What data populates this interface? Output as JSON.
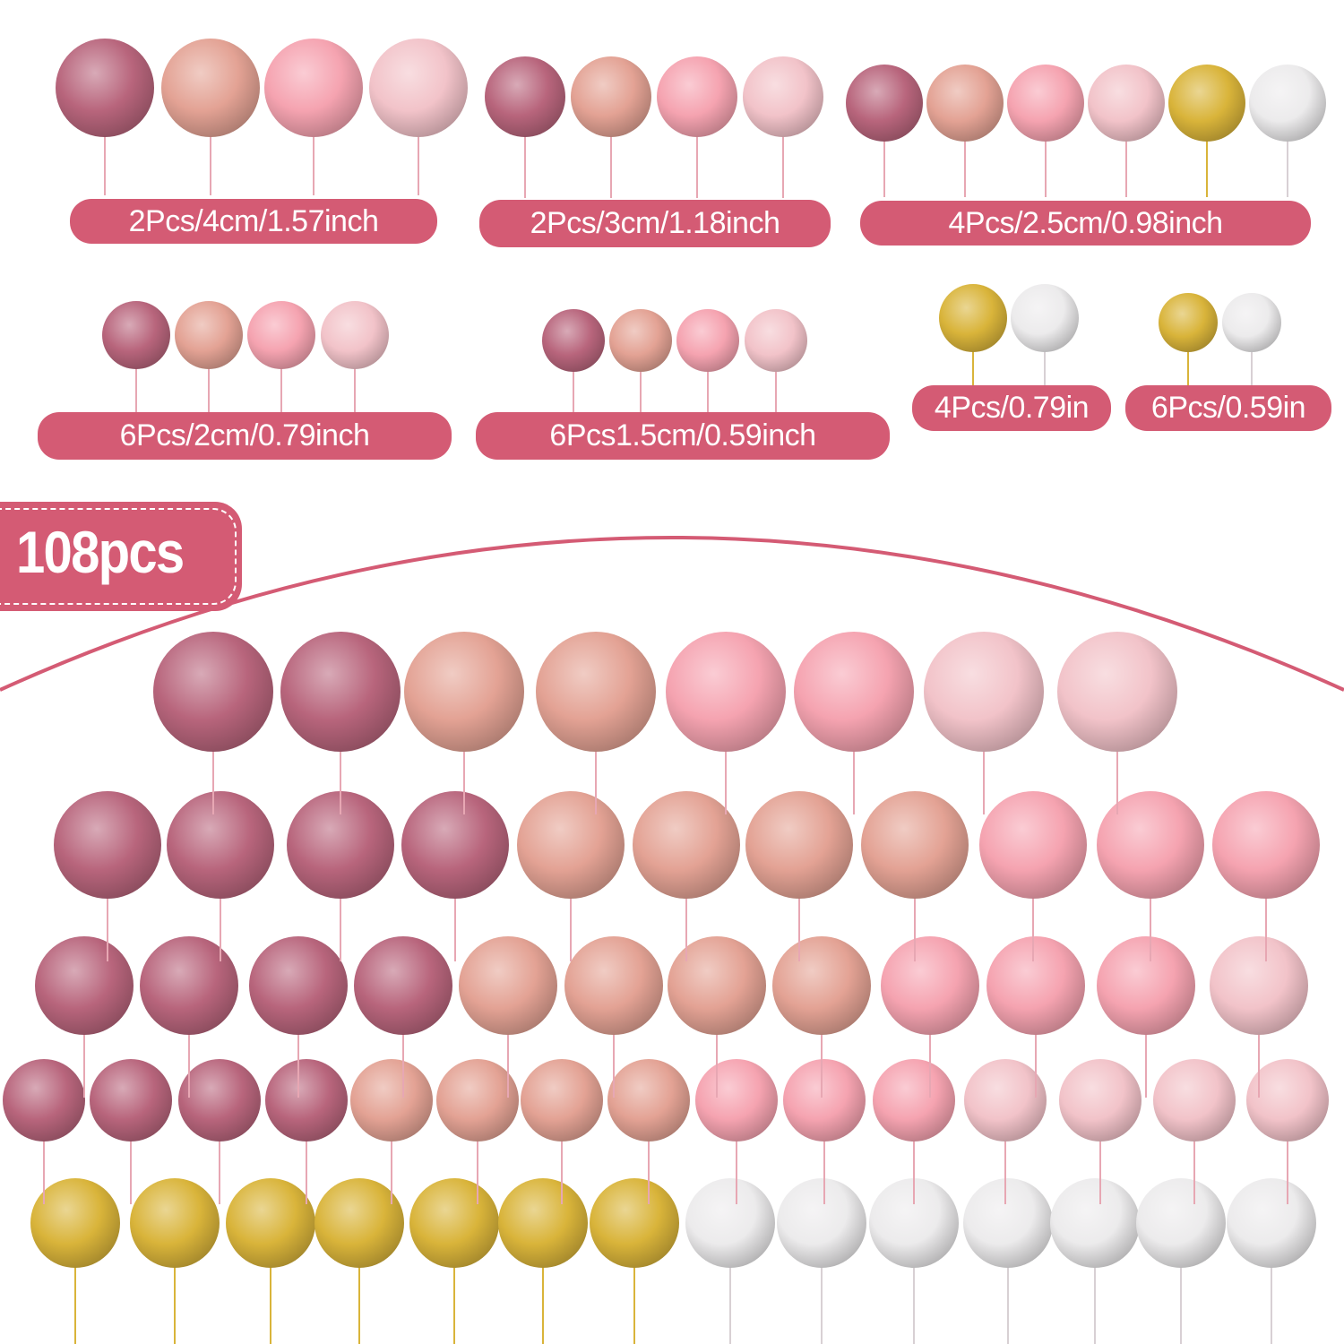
{
  "badge": "108pcs",
  "colors": {
    "accent": "#d45b74",
    "glitter": "#b8657c",
    "pearl": "#e3a294",
    "matte": "#f5a3b0",
    "light": "#f2c3c9",
    "gold": "#d9b43a",
    "silver": "#ecebec"
  },
  "groups": [
    {
      "label": "2Pcs/4cm/1.57inch",
      "balls": [
        "glitter",
        "pearl",
        "matte",
        "light"
      ]
    },
    {
      "label": "2Pcs/3cm/1.18inch",
      "balls": [
        "glitter",
        "pearl",
        "matte",
        "light"
      ]
    },
    {
      "label": "4Pcs/2.5cm/0.98inch",
      "balls": [
        "glitter",
        "pearl",
        "matte",
        "light",
        "gold",
        "silver"
      ]
    },
    {
      "label": "6Pcs/2cm/0.79inch",
      "balls": [
        "glitter",
        "pearl",
        "matte",
        "light"
      ]
    },
    {
      "label": "6Pcs1.5cm/0.59inch",
      "balls": [
        "glitter",
        "pearl",
        "matte",
        "light"
      ]
    },
    {
      "label": "4Pcs/0.79in",
      "balls": [
        "gold",
        "silver"
      ]
    },
    {
      "label": "6Pcs/0.59in",
      "balls": [
        "gold",
        "silver"
      ]
    }
  ],
  "rows": [
    [
      "glitter",
      "glitter",
      "pearl",
      "pearl",
      "matte",
      "matte",
      "light",
      "light"
    ],
    [
      "glitter",
      "glitter",
      "glitter",
      "glitter",
      "pearl",
      "pearl",
      "pearl",
      "pearl",
      "matte",
      "matte",
      "matte"
    ],
    [
      "glitter",
      "glitter",
      "glitter",
      "glitter",
      "pearl",
      "pearl",
      "pearl",
      "pearl",
      "matte",
      "matte",
      "matte",
      "light"
    ],
    [
      "glitter",
      "glitter",
      "glitter",
      "glitter",
      "pearl",
      "pearl",
      "pearl",
      "pearl",
      "matte",
      "matte",
      "matte",
      "light",
      "light",
      "light",
      "light"
    ],
    [
      "gold",
      "gold",
      "gold",
      "gold",
      "gold",
      "gold",
      "gold",
      "silver",
      "silver",
      "silver",
      "silver",
      "silver",
      "silver",
      "silver"
    ]
  ]
}
